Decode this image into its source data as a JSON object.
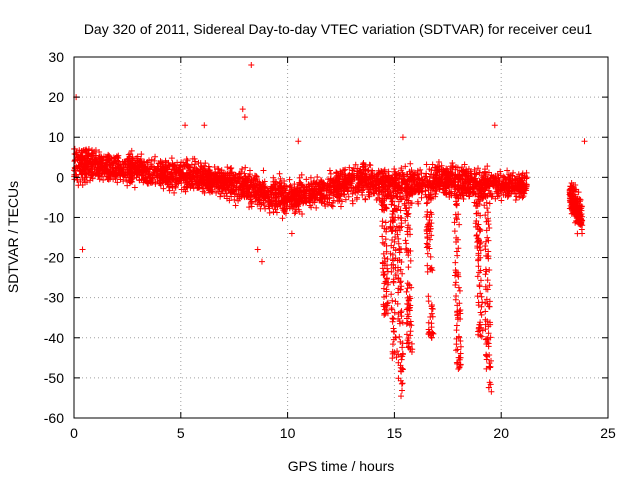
{
  "chart_data": {
    "type": "scatter",
    "title": "Day 320 of 2011, Sidereal Day-to-day VTEC variation (SDTVAR) for receiver ceu1",
    "xlabel": "GPS time / hours",
    "ylabel": "SDTVAR / TECUs",
    "xlim": [
      0,
      25
    ],
    "ylim": [
      -60,
      30
    ],
    "xticks": [
      0,
      5,
      10,
      15,
      20,
      25
    ],
    "yticks": [
      30,
      20,
      10,
      0,
      -10,
      -20,
      -30,
      -40,
      -50,
      -60
    ],
    "grid": true,
    "marker": "+",
    "color": "#ff0000",
    "series": [
      {
        "name": "SDTVAR",
        "band": [
          {
            "x": 0.0,
            "center": 3,
            "spread": 8
          },
          {
            "x": 1.0,
            "center": 3,
            "spread": 6
          },
          {
            "x": 2.0,
            "center": 2,
            "spread": 6
          },
          {
            "x": 3.0,
            "center": 2,
            "spread": 6
          },
          {
            "x": 4.0,
            "center": 1,
            "spread": 6
          },
          {
            "x": 5.0,
            "center": 1,
            "spread": 7
          },
          {
            "x": 6.0,
            "center": 0,
            "spread": 6
          },
          {
            "x": 7.0,
            "center": -1,
            "spread": 6
          },
          {
            "x": 8.0,
            "center": -2,
            "spread": 7
          },
          {
            "x": 9.0,
            "center": -4,
            "spread": 7
          },
          {
            "x": 10.0,
            "center": -5,
            "spread": 7
          },
          {
            "x": 11.0,
            "center": -4,
            "spread": 6
          },
          {
            "x": 12.0,
            "center": -3,
            "spread": 7
          },
          {
            "x": 13.0,
            "center": -1,
            "spread": 7
          },
          {
            "x": 14.0,
            "center": -1,
            "spread": 7
          },
          {
            "x": 15.0,
            "center": -2,
            "spread": 7
          },
          {
            "x": 16.0,
            "center": -2,
            "spread": 7
          },
          {
            "x": 17.0,
            "center": -1,
            "spread": 7
          },
          {
            "x": 18.0,
            "center": -1,
            "spread": 7
          },
          {
            "x": 19.0,
            "center": -2,
            "spread": 7
          },
          {
            "x": 20.0,
            "center": -2,
            "spread": 6
          },
          {
            "x": 21.2,
            "center": -2,
            "spread": 5
          }
        ],
        "dips": [
          {
            "x": 14.5,
            "min": -35
          },
          {
            "x": 14.9,
            "min": -47
          },
          {
            "x": 15.2,
            "min": -55
          },
          {
            "x": 15.6,
            "min": -45
          },
          {
            "x": 16.6,
            "min": -41
          },
          {
            "x": 17.9,
            "min": -48
          },
          {
            "x": 18.9,
            "min": -40
          },
          {
            "x": 19.3,
            "min": -54
          }
        ],
        "late_segment": [
          {
            "x": 23.2,
            "center": -4,
            "spread": 6
          },
          {
            "x": 23.8,
            "center": -10,
            "spread": 8
          }
        ],
        "outliers": [
          {
            "x": 8.3,
            "y": 28
          },
          {
            "x": 0.4,
            "y": -18
          },
          {
            "x": 8.8,
            "y": -21
          },
          {
            "x": 7.9,
            "y": 17
          },
          {
            "x": 19.7,
            "y": 13
          },
          {
            "x": 0.1,
            "y": 20
          },
          {
            "x": 5.2,
            "y": 13
          },
          {
            "x": 6.1,
            "y": 13
          },
          {
            "x": 8.0,
            "y": 15
          },
          {
            "x": 10.5,
            "y": 9
          },
          {
            "x": 15.4,
            "y": 10
          },
          {
            "x": 23.9,
            "y": 9
          },
          {
            "x": 8.6,
            "y": -18
          },
          {
            "x": 10.2,
            "y": -14
          }
        ]
      }
    ]
  }
}
